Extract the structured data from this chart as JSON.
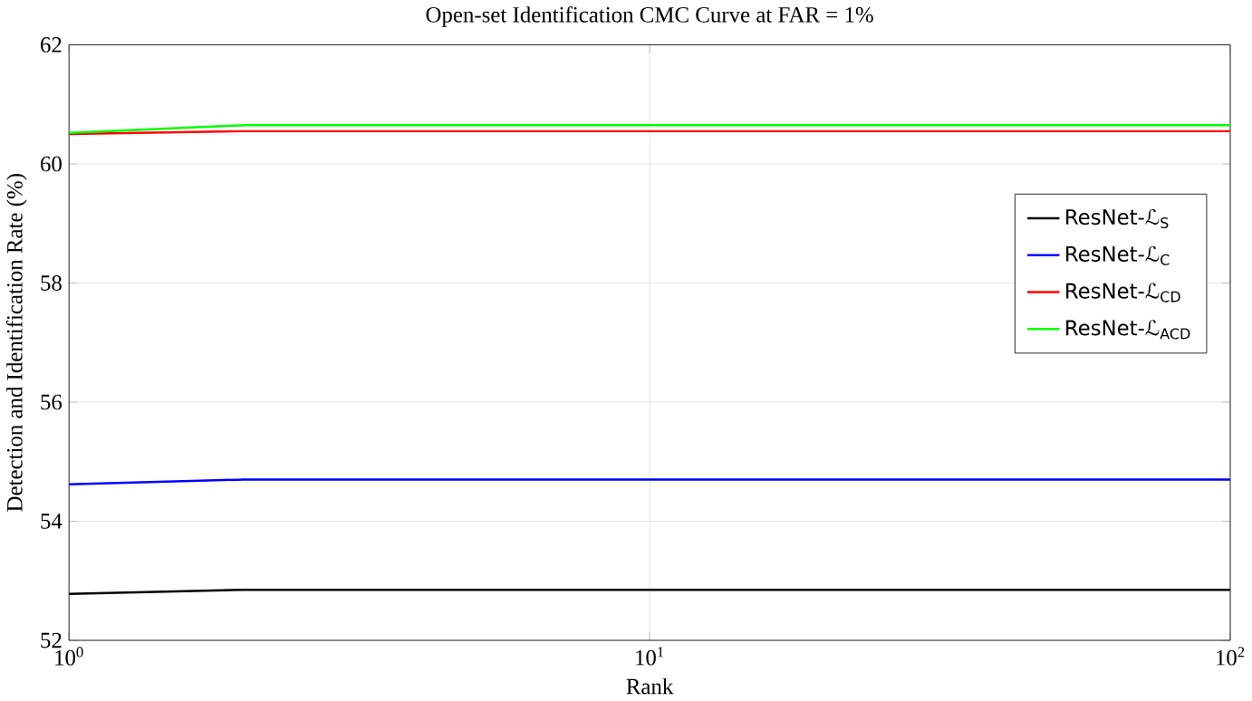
{
  "chart_data": {
    "type": "line",
    "title": "Open-set Identification CMC Curve at FAR = 1%",
    "xlabel": "Rank",
    "ylabel": "Detection and Identification Rate (%)",
    "x": [
      1,
      2,
      100
    ],
    "series": [
      {
        "name": "ResNet-ℒ$_{S}$",
        "color": "#000000",
        "values": [
          52.78,
          52.85,
          52.85
        ]
      },
      {
        "name": "ResNet-ℒ$_{C}$",
        "color": "#0000ff",
        "values": [
          54.62,
          54.7,
          54.7
        ]
      },
      {
        "name": "ResNet-ℒ$_{CD}$",
        "color": "#ff0000",
        "values": [
          60.5,
          60.55,
          60.55
        ]
      },
      {
        "name": "ResNet-ℒ$_{ACD}$",
        "color": "#00ff00",
        "values": [
          60.52,
          60.65,
          60.65
        ]
      }
    ],
    "log": "x",
    "xlim": [
      1,
      100
    ],
    "xticks": [
      {
        "value": 1,
        "label": "10$^{0}$"
      },
      {
        "value": 10,
        "label": "10$^{1}$"
      },
      {
        "value": 100,
        "label": "10$^{2}$"
      }
    ],
    "ylim": [
      52,
      62
    ],
    "yticks": [
      52,
      54,
      56,
      58,
      60,
      62
    ],
    "grid": true,
    "legend": "right",
    "marker": "none",
    "line_style": "solid"
  }
}
